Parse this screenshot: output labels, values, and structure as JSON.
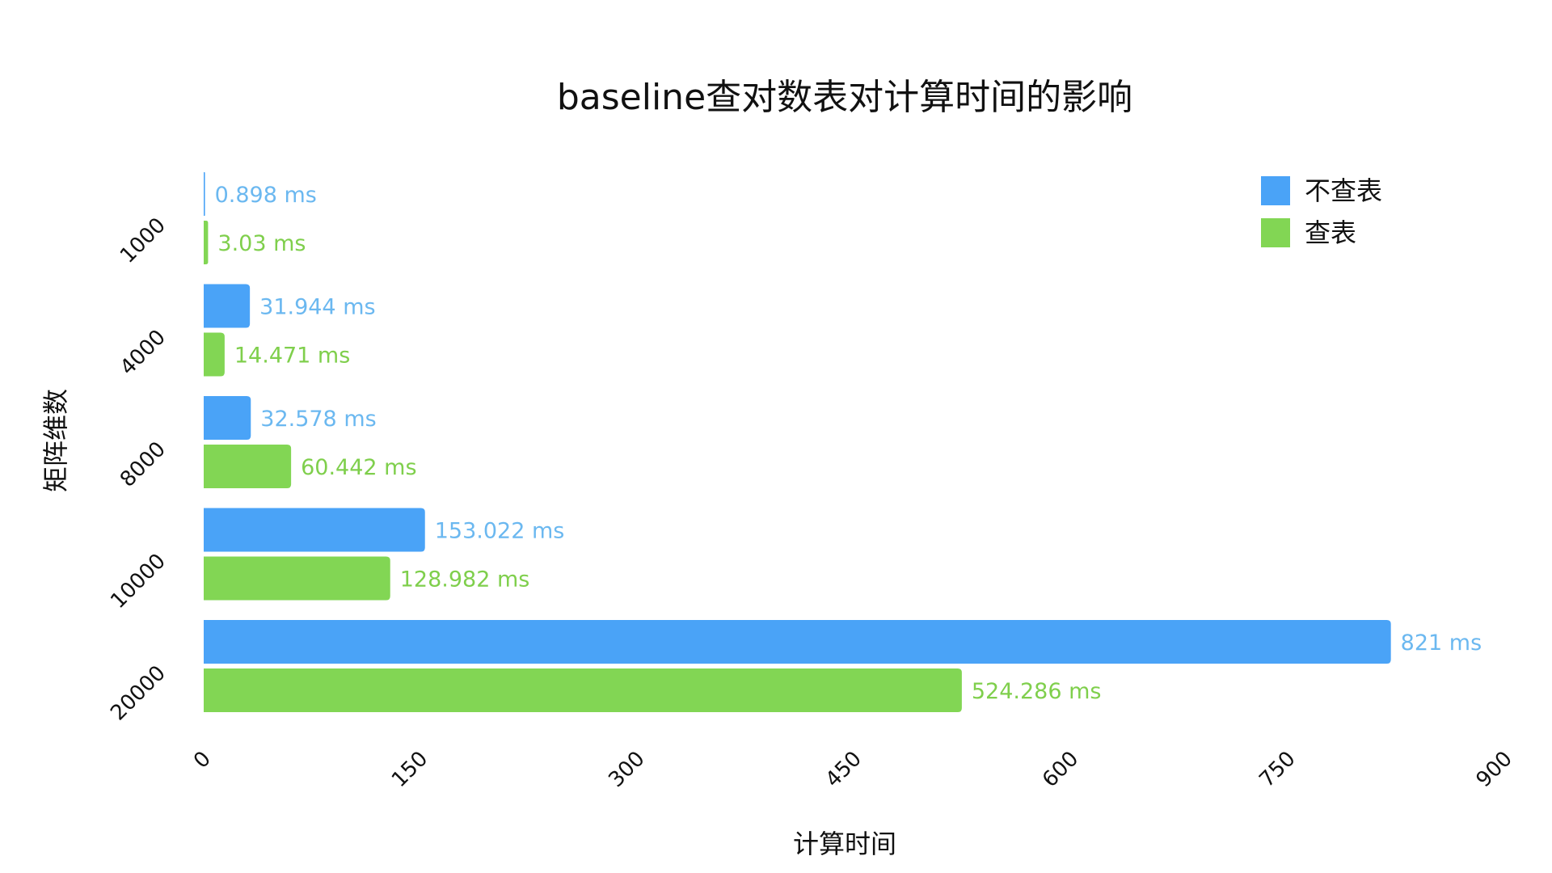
{
  "chart_data": {
    "type": "bar",
    "orientation": "horizontal",
    "title": "baseline查对数表对计算时间的影响",
    "xlabel": "计算时间",
    "ylabel": "矩阵维数",
    "categories": [
      "1000",
      "4000",
      "8000",
      "10000",
      "20000"
    ],
    "xlim": [
      0,
      900
    ],
    "xticks": [
      "0",
      "150",
      "300",
      "450",
      "600",
      "750",
      "900"
    ],
    "grid": false,
    "legend_position": "top-right",
    "series": [
      {
        "name": "不查表",
        "color": "#4aa3f7",
        "label_color": "#6bb8f0",
        "values": [
          0.898,
          31.944,
          32.578,
          153.022,
          821
        ],
        "labels": [
          "0.898 ms",
          "31.944 ms",
          "32.578 ms",
          "153.022 ms",
          "821 ms"
        ]
      },
      {
        "name": "查表",
        "color": "#82d654",
        "label_color": "#7fcf4c",
        "values": [
          3.03,
          14.471,
          60.442,
          128.982,
          524.286
        ],
        "labels": [
          "3.03 ms",
          "14.471 ms",
          "60.442 ms",
          "128.982 ms",
          "524.286 ms"
        ]
      }
    ]
  }
}
